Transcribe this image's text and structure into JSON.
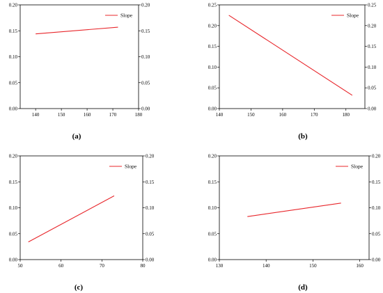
{
  "chart_data": [
    {
      "id": "a",
      "type": "line",
      "caption": "(a)",
      "x_ticks": [
        "140",
        "150",
        "160",
        "170",
        "180"
      ],
      "y_ticks": [
        "0.00",
        "0.05",
        "0.10",
        "0.15",
        "0.20"
      ],
      "xlim": [
        134,
        180
      ],
      "ylim": [
        0,
        0.2
      ],
      "grid": false,
      "legend_position": "top-right",
      "series": [
        {
          "name": "Slope",
          "color": "#e8252a",
          "x": [
            140,
            172
          ],
          "y": [
            0.144,
            0.157
          ]
        }
      ]
    },
    {
      "id": "b",
      "type": "line",
      "caption": "(b)",
      "x_ticks": [
        "140",
        "150",
        "160",
        "170",
        "180"
      ],
      "y_ticks": [
        "0.00",
        "0.05",
        "0.10",
        "0.15",
        "0.20",
        "0.25"
      ],
      "xlim": [
        140,
        186
      ],
      "ylim": [
        0,
        0.25
      ],
      "grid": false,
      "legend_position": "top-right",
      "series": [
        {
          "name": "Slope",
          "color": "#e8252a",
          "x": [
            143,
            182
          ],
          "y": [
            0.225,
            0.032
          ]
        }
      ]
    },
    {
      "id": "c",
      "type": "line",
      "caption": "(c)",
      "x_ticks": [
        "50",
        "60",
        "70",
        "80"
      ],
      "y_ticks": [
        "0.00",
        "0.05",
        "0.10",
        "0.15",
        "0.20"
      ],
      "xlim": [
        50,
        80
      ],
      "ylim": [
        0,
        0.2
      ],
      "grid": false,
      "legend_position": "top-right",
      "series": [
        {
          "name": "Slope",
          "color": "#e8252a",
          "x": [
            52,
            73
          ],
          "y": [
            0.034,
            0.123
          ]
        }
      ]
    },
    {
      "id": "d",
      "type": "line",
      "caption": "(d)",
      "x_ticks": [
        "130",
        "140",
        "150",
        "160"
      ],
      "y_ticks": [
        "0.00",
        "0.05",
        "0.10",
        "0.15",
        "0.20"
      ],
      "xlim": [
        130,
        162
      ],
      "ylim": [
        0,
        0.2
      ],
      "grid": false,
      "legend_position": "top-right",
      "series": [
        {
          "name": "Slope",
          "color": "#e8252a",
          "x": [
            136,
            156
          ],
          "y": [
            0.083,
            0.109
          ]
        }
      ]
    }
  ]
}
